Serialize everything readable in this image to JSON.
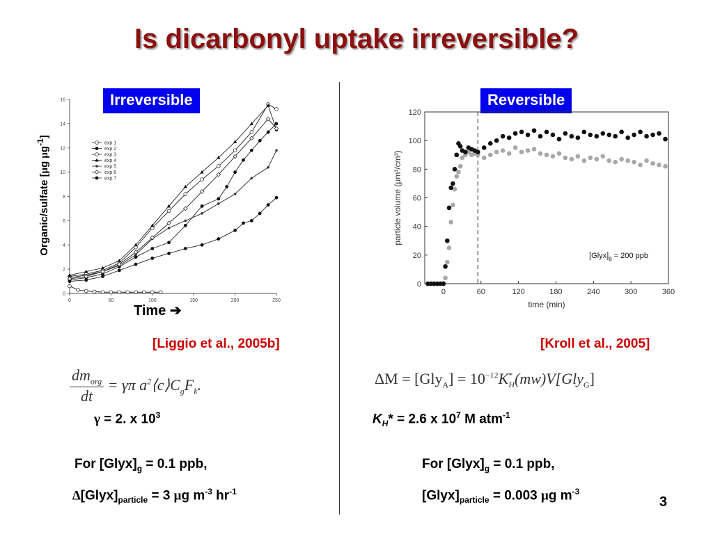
{
  "slide": {
    "title": "Is dicarbonyl uptake irreversible?",
    "page_number": "3",
    "divider_color": "#333333"
  },
  "left": {
    "tag": "Irreversible",
    "ylabel_pre": "Organic/sulfate [",
    "ylabel_mu": "μ",
    "ylabel_mid": "g ",
    "ylabel_mu2": "μ",
    "ylabel_g": "g",
    "ylabel_sup": "-1",
    "ylabel_post": "]",
    "time_label": "Time",
    "time_arrow": "➔",
    "citation": "[Liggio et al., 2005b]",
    "eq_num": "dm",
    "eq_num_sub": "org",
    "eq_den": "dt",
    "eq_rhs": "= γπ a",
    "eq_rhs_sup": "2",
    "eq_rhs2": "⟨c⟩C",
    "eq_rhs_sub": "g",
    "eq_rhs3": "F",
    "eq_rhs_sub2": "k",
    "eq_rhs4": ".",
    "gamma_sym": "γ",
    "gamma_text": " = 2. x 10",
    "gamma_exp": "3",
    "for_line_pre": "For [Glyx]",
    "for_line_sub": "g",
    "for_line_post": " = 0.1 ppb,",
    "rate_delta": "∆",
    "rate_pre": "[Glyx]",
    "rate_sub": "particle",
    "rate_mid": " = 3 ",
    "rate_mu": "μ",
    "rate_g": "g m",
    "rate_sup1": "-3",
    "rate_hr": " hr",
    "rate_sup2": "-1"
  },
  "right": {
    "tag": "Reversible",
    "citation": "[Kroll et al., 2005]",
    "eq_a": "ΔM = [Gly",
    "eq_a_sub": "A",
    "eq_b": "] = 10",
    "eq_b_sup": "−12",
    "eq_c": "K",
    "eq_c_sup": "*",
    "eq_c_sub": "H",
    "eq_d": "(mw)V[Gly",
    "eq_d_sub": "G",
    "eq_e": "]",
    "kh_k": "K",
    "kh_sub": "H",
    "kh_star": "*",
    "kh_text": " = 2.6 x 10",
    "kh_sup": "7",
    "kh_unit": " M atm",
    "kh_unit_sup": "-1",
    "for_line_pre": "For [Glyx]",
    "for_line_sub": "g",
    "for_line_post": " = 0.1 ppb,",
    "conc_pre": "[Glyx]",
    "conc_sub": "particle",
    "conc_mid": " = 0.003 ",
    "conc_mu": "μ",
    "conc_g": "g m",
    "conc_sup": "-3"
  },
  "colors": {
    "title": "#8b1010",
    "tag_bg": "#0000ee",
    "citation": "#cc0000",
    "black_series": "#111111",
    "gray_series": "#a8a8a8"
  },
  "chart_data": [
    {
      "type": "line",
      "legend_position": "left-middle",
      "x_ticks": [
        0,
        50,
        100,
        150,
        200,
        250
      ],
      "y_ticks": [
        0,
        2,
        4,
        6,
        8,
        10,
        12,
        14,
        16
      ],
      "xlim": [
        0,
        250
      ],
      "ylim": [
        0,
        16
      ],
      "grid": false,
      "series": [
        {
          "name": "exp 1",
          "marker": "open-circle",
          "x": [
            0,
            10,
            20,
            30,
            40,
            50,
            60,
            70,
            80,
            90,
            100,
            110
          ],
          "y": [
            0.6,
            0.3,
            0.2,
            0.15,
            0.1,
            0.1,
            0.1,
            0.1,
            0.1,
            0.1,
            0.1,
            0.1
          ]
        },
        {
          "name": "exp 2",
          "marker": "filled-circle",
          "x": [
            0,
            20,
            40,
            60,
            80,
            100,
            120,
            140,
            160,
            180,
            190,
            200,
            210,
            220,
            230,
            240,
            250
          ],
          "y": [
            1.1,
            1.3,
            1.6,
            2.2,
            3.0,
            3.7,
            4.2,
            5.6,
            7.2,
            7.8,
            8.8,
            10.0,
            11.0,
            11.8,
            12.6,
            13.3,
            14.0
          ]
        },
        {
          "name": "exp 3",
          "marker": "open-circle",
          "x": [
            0,
            20,
            40,
            60,
            80,
            100,
            120,
            140,
            160,
            180,
            200,
            220,
            240,
            250
          ],
          "y": [
            1.4,
            1.6,
            1.9,
            2.5,
            3.8,
            5.4,
            6.8,
            8.2,
            9.4,
            10.5,
            11.8,
            13.3,
            15.6,
            15.2
          ]
        },
        {
          "name": "exp 4",
          "marker": "triangle",
          "x": [
            0,
            20,
            40,
            60,
            80,
            100,
            120,
            140,
            160,
            180,
            200,
            220,
            240,
            250
          ],
          "y": [
            1.5,
            1.8,
            2.1,
            2.7,
            4.0,
            5.6,
            7.2,
            8.8,
            10.0,
            11.2,
            12.5,
            14.0,
            15.5,
            13.5
          ]
        },
        {
          "name": "exp 5",
          "marker": "small-circle",
          "x": [
            0,
            20,
            40,
            60,
            80,
            100,
            120,
            140,
            160,
            180,
            200,
            220,
            240,
            250
          ],
          "y": [
            1.3,
            1.5,
            1.8,
            2.3,
            3.2,
            4.5,
            5.4,
            6.0,
            6.6,
            7.4,
            8.2,
            9.5,
            10.4,
            11.8
          ]
        },
        {
          "name": "exp 6",
          "marker": "open-diamond",
          "x": [
            0,
            20,
            40,
            60,
            80,
            100,
            120,
            140,
            160,
            180,
            200,
            220,
            240,
            250
          ],
          "y": [
            1.2,
            1.4,
            1.8,
            2.4,
            3.4,
            4.6,
            5.8,
            7.0,
            8.4,
            9.8,
            11.3,
            12.8,
            14.4,
            13.6
          ]
        },
        {
          "name": "exp 7",
          "marker": "filled-circle",
          "x": [
            0,
            20,
            40,
            60,
            80,
            100,
            120,
            140,
            160,
            180,
            200,
            210,
            220,
            230,
            240,
            250
          ],
          "y": [
            1.0,
            1.1,
            1.4,
            1.9,
            2.4,
            2.9,
            3.3,
            3.7,
            4.0,
            4.5,
            5.2,
            5.8,
            6.0,
            6.6,
            7.3,
            7.9
          ]
        }
      ]
    },
    {
      "type": "scatter",
      "xlabel": "time (min)",
      "ylabel": "particle volume (μm³/cm³)",
      "annotation": "[Glyx]g = 200 ppb",
      "vline_x": 55,
      "xlim": [
        -30,
        360
      ],
      "ylim": [
        0,
        120
      ],
      "x_ticks": [
        0,
        60,
        120,
        180,
        240,
        300,
        360
      ],
      "y_ticks": [
        0,
        20,
        40,
        60,
        80,
        100,
        120
      ],
      "grid": false,
      "series": [
        {
          "name": "",
          "color": "black",
          "x": [
            -25,
            -20,
            -15,
            -10,
            -5,
            0,
            3,
            6,
            9,
            12,
            15,
            18,
            21,
            24,
            27,
            30,
            35,
            40,
            45,
            50,
            55,
            65,
            75,
            85,
            95,
            105,
            115,
            125,
            135,
            145,
            155,
            165,
            175,
            185,
            195,
            205,
            215,
            225,
            235,
            245,
            255,
            265,
            275,
            285,
            295,
            305,
            315,
            325,
            335,
            345,
            355
          ],
          "y": [
            0,
            0,
            0,
            0,
            0,
            0,
            12,
            30,
            53,
            67,
            70,
            80,
            90,
            98,
            96,
            93,
            92,
            95,
            94,
            93,
            92,
            95,
            98,
            100,
            103,
            102,
            105,
            106,
            104,
            107,
            103,
            106,
            104,
            101,
            105,
            103,
            102,
            106,
            104,
            103,
            105,
            104,
            103,
            106,
            102,
            104,
            106,
            103,
            104,
            105,
            101
          ]
        },
        {
          "name": "",
          "color": "gray",
          "x": [
            -25,
            -20,
            -15,
            -10,
            -5,
            0,
            3,
            6,
            9,
            12,
            15,
            18,
            21,
            24,
            27,
            30,
            35,
            40,
            45,
            50,
            55,
            65,
            75,
            85,
            95,
            105,
            115,
            125,
            135,
            145,
            155,
            165,
            175,
            185,
            195,
            205,
            215,
            225,
            235,
            245,
            255,
            265,
            275,
            285,
            295,
            305,
            315,
            325,
            335,
            345,
            355
          ],
          "y": [
            0,
            0,
            0,
            0,
            0,
            0,
            4,
            15,
            25,
            43,
            55,
            66,
            75,
            78,
            82,
            88,
            90,
            92,
            90,
            91,
            90,
            88,
            90,
            92,
            93,
            91,
            95,
            92,
            93,
            94,
            91,
            90,
            89,
            91,
            88,
            87,
            89,
            86,
            88,
            87,
            89,
            86,
            85,
            87,
            86,
            85,
            83,
            86,
            84,
            83,
            82
          ]
        }
      ]
    }
  ]
}
